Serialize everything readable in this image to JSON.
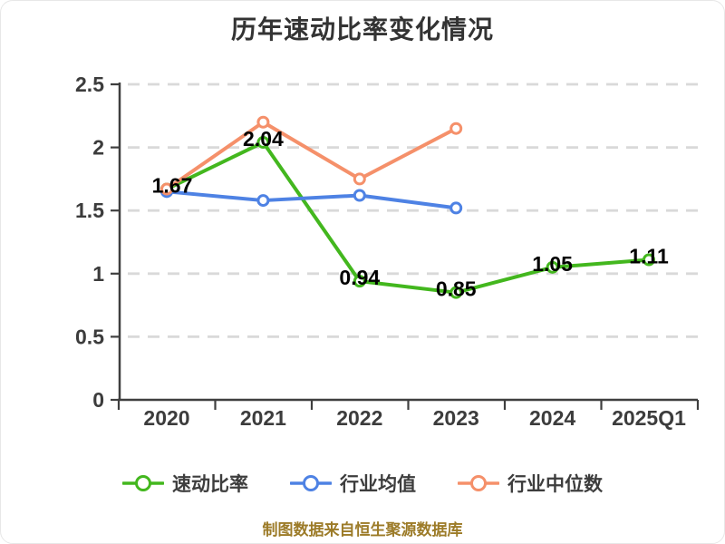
{
  "title": "历年速动比率变化情况",
  "footer": "制图数据来自恒生聚源数据库",
  "colors": {
    "title": "#333333",
    "axis": "#3f3f3f",
    "grid": "#d9d9d9",
    "tick_label": "#3c3c3c",
    "data_label": "#000000",
    "footer": "#9c7b28",
    "marker_fill": "#ffffff"
  },
  "chart_data": {
    "type": "line",
    "title": "历年速动比率变化情况",
    "categories": [
      "2020",
      "2021",
      "2022",
      "2023",
      "2024",
      "2025Q1"
    ],
    "ylim": [
      0,
      2.5
    ],
    "yticks": [
      0,
      0.5,
      1,
      1.5,
      2,
      2.5
    ],
    "ytick_labels": [
      "0",
      "0.5",
      "1",
      "1.5",
      "2",
      "2.5"
    ],
    "grid": "horizontal-dashed",
    "legend_position": "bottom",
    "series": [
      {
        "id": "quick-ratio",
        "name": "速动比率",
        "color": "#43b71e",
        "values": [
          1.67,
          2.04,
          0.94,
          0.85,
          1.05,
          1.11
        ],
        "point_labels": [
          "1.67",
          "2.04",
          "0.94",
          "0.85",
          "1.05",
          "1.11"
        ]
      },
      {
        "id": "industry-mean",
        "name": "行业均值",
        "color": "#4e82e4",
        "values": [
          1.65,
          1.58,
          1.62,
          1.52,
          null,
          null
        ],
        "point_labels": null
      },
      {
        "id": "industry-median",
        "name": "行业中位数",
        "color": "#f5906a",
        "values": [
          1.67,
          2.2,
          1.75,
          2.15,
          null,
          null
        ],
        "point_labels": null
      }
    ]
  }
}
